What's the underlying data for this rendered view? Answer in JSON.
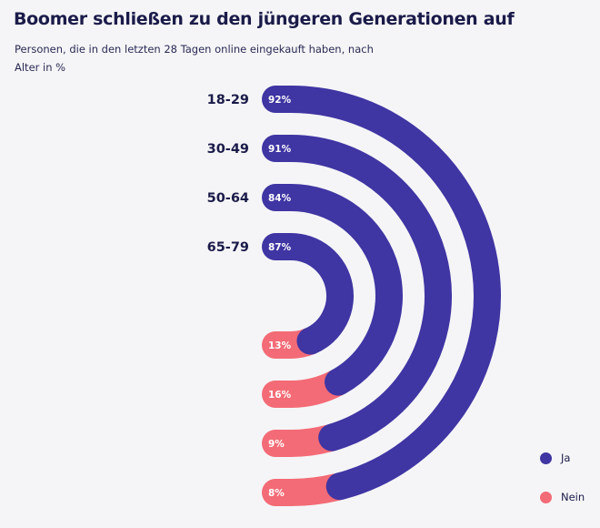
{
  "title": "Boomer schließen zu den jüngeren Generationen auf",
  "subtitle": "Personen, die in den letzten 28 Tagen online eingekauft haben, nach Alter in %",
  "colors": {
    "ja": "#3f35a3",
    "nein": "#f36b76",
    "background": "#f5f5f7"
  },
  "legend": [
    {
      "key": "ja",
      "label": "Ja"
    },
    {
      "key": "nein",
      "label": "Nein"
    }
  ],
  "chart_data": {
    "type": "radial-bar",
    "title": "Boomer schließen zu den jüngeren Generationen auf",
    "subtitle": "Personen, die in den letzten 28 Tagen online eingekauft haben, nach Alter in %",
    "categories": [
      "18-29",
      "30-49",
      "50-64",
      "65-79"
    ],
    "series": [
      {
        "name": "Ja",
        "values": [
          92,
          91,
          84,
          87
        ],
        "labels": [
          "92%",
          "91%",
          "84%",
          "87%"
        ]
      },
      {
        "name": "Nein",
        "values": [
          8,
          9,
          16,
          13
        ],
        "labels": [
          "8%",
          "9%",
          "16%",
          "13%"
        ]
      }
    ],
    "legend_position": "bottom-right"
  }
}
